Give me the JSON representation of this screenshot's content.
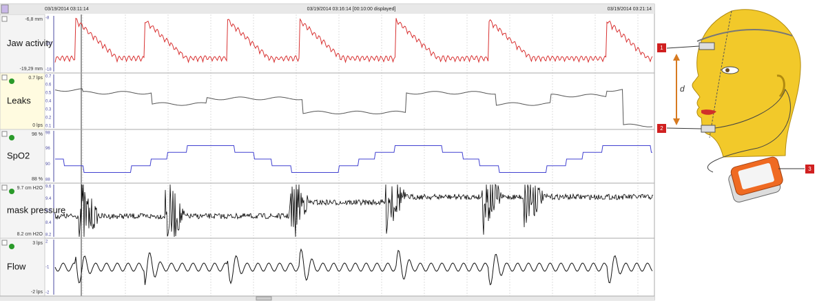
{
  "header": {
    "start_time": "03/19/2014 03:11:14",
    "center_time": "03/19/2014 03:16:14 [00:10:00 displayed]",
    "end_time": "03/19/2014 03:21:14"
  },
  "channels": [
    {
      "label": "Jaw activity",
      "top": "-6,8 mm",
      "bottom": "-19,29 mm",
      "scale": [
        "-8",
        "-10",
        "-18"
      ]
    },
    {
      "label": "Leaks",
      "top": "0.7 lps",
      "bottom": "0 lps",
      "scale": [
        "0.7",
        "0.6",
        "0.5",
        "0.4",
        "0.3",
        "0.2",
        "0.1"
      ]
    },
    {
      "label": "SpO2",
      "top": "98 %",
      "bottom": "88 %",
      "scale": [
        "98",
        "96",
        "90",
        "88"
      ]
    },
    {
      "label": "mask pressure",
      "top": "9.7 cm H2O",
      "bottom": "8.2 cm H2O",
      "scale": [
        "9.6",
        "9.4",
        "9.2",
        "8.4",
        "8.2"
      ]
    },
    {
      "label": "Flow",
      "top": "3 lps",
      "bottom": "-2 lps",
      "scale": [
        "2",
        "-1",
        "-2"
      ]
    }
  ],
  "illustration": {
    "markers": [
      "1",
      "2",
      "3"
    ],
    "distance": "d"
  }
}
